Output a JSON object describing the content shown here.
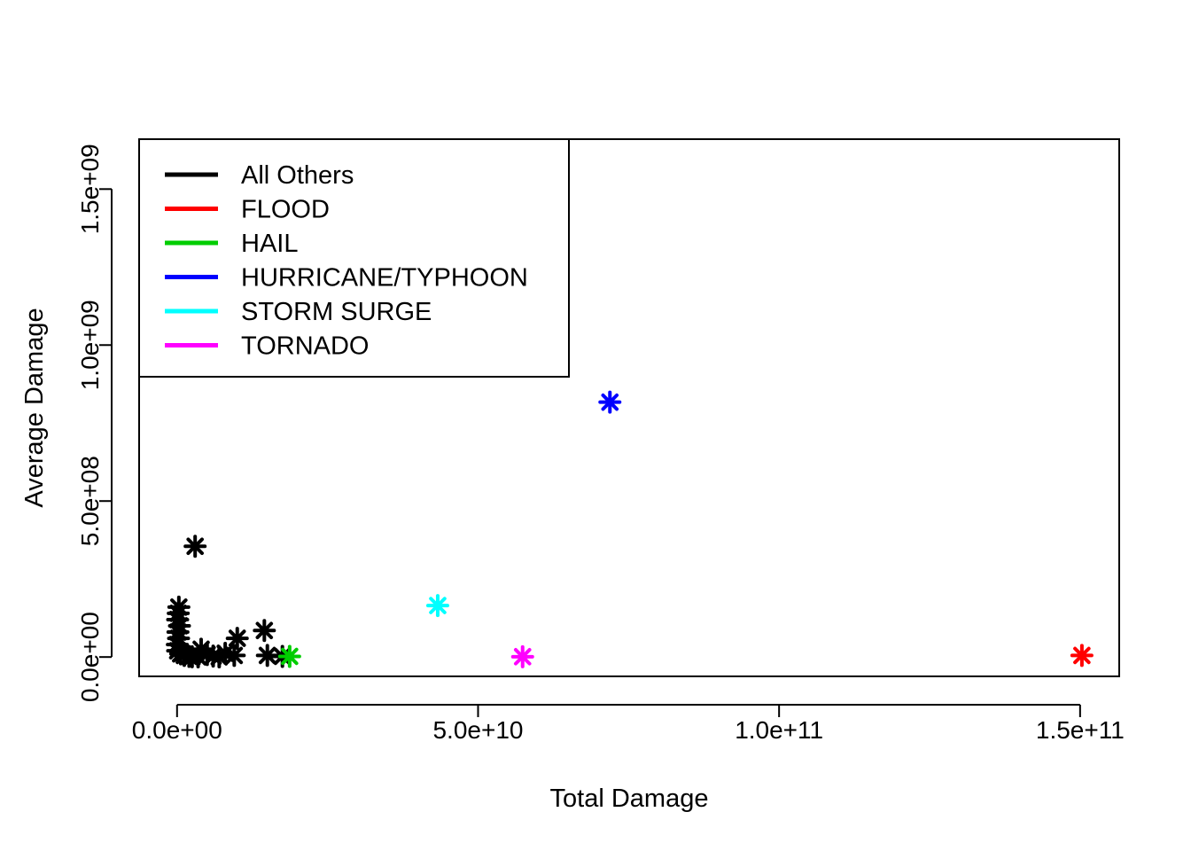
{
  "chart_data": {
    "type": "scatter",
    "title": "",
    "xlabel": "Total Damage",
    "ylabel": "Average Damage",
    "xlim": [
      -6300000000,
      156500000000
    ],
    "ylim": [
      -62000000,
      1660000000
    ],
    "xticks": [
      0,
      50000000000,
      100000000000,
      150000000000
    ],
    "xtick_labels": [
      "0.0e+00",
      "5.0e+10",
      "1.0e+11",
      "1.5e+11"
    ],
    "yticks": [
      0,
      500000000,
      1000000000,
      1500000000
    ],
    "ytick_labels": [
      "0.0e+00",
      "5.0e+08",
      "1.0e+09",
      "1.5e+09"
    ],
    "grid": false,
    "legend_position": "top-left",
    "marker": "asterisk",
    "series": [
      {
        "name": "All Others",
        "color": "#000000",
        "points": [
          [
            3000000000,
            355000000
          ],
          [
            300000000,
            160000000
          ],
          [
            200000000,
            140000000
          ],
          [
            100000000,
            120000000
          ],
          [
            400000000,
            100000000
          ],
          [
            150000000,
            80000000
          ],
          [
            250000000,
            60000000
          ],
          [
            50000000,
            40000000
          ],
          [
            100000000,
            20000000
          ],
          [
            600000000,
            10000000
          ],
          [
            1200000000,
            5000000
          ],
          [
            2000000000,
            2000000
          ],
          [
            4000000000,
            25000000
          ],
          [
            5000000000,
            8000000
          ],
          [
            6000000000,
            3000000
          ],
          [
            8000000000,
            12000000
          ],
          [
            9500000000,
            5000000
          ],
          [
            10000000000,
            60000000
          ],
          [
            14500000000,
            85000000
          ],
          [
            15000000000,
            5000000
          ],
          [
            17500000000,
            2000000
          ],
          [
            2500000000,
            1000000
          ],
          [
            3500000000,
            500000
          ],
          [
            7000000000,
            500000
          ]
        ]
      },
      {
        "name": "FLOOD",
        "color": "#ff0000",
        "points": [
          [
            150300000000,
            5000000
          ]
        ]
      },
      {
        "name": "HAIL",
        "color": "#00cd00",
        "points": [
          [
            18700000000,
            2000000
          ]
        ]
      },
      {
        "name": "HURRICANE/TYPHOON",
        "color": "#0000ff",
        "points": [
          [
            71900000000,
            817000000
          ]
        ]
      },
      {
        "name": "STORM SURGE",
        "color": "#00ffff",
        "points": [
          [
            43300000000,
            165000000
          ]
        ]
      },
      {
        "name": "TORNADO",
        "color": "#ff00ff",
        "points": [
          [
            57400000000,
            1000000
          ]
        ]
      }
    ]
  }
}
